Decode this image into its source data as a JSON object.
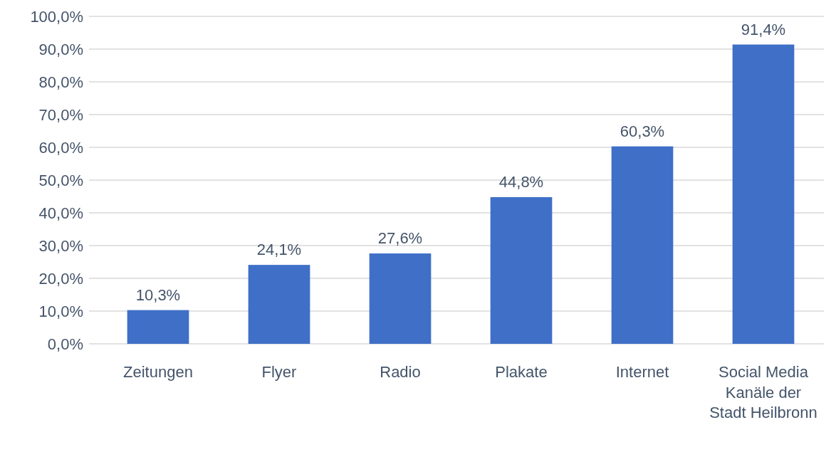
{
  "chart_data": {
    "type": "bar",
    "categories": [
      "Zeitungen",
      "Flyer",
      "Radio",
      "Plakate",
      "Internet",
      "Social Media Kanäle der Stadt Heilbronn"
    ],
    "values": [
      10.3,
      24.1,
      27.6,
      44.8,
      60.3,
      91.4
    ],
    "value_labels": [
      "10,3%",
      "24,1%",
      "27,6%",
      "44,8%",
      "60,3%",
      "91,4%"
    ],
    "color": "#3f6fc7",
    "ylim": [
      0,
      100
    ],
    "yticks": [
      {
        "value": 0,
        "label": "0,0%"
      },
      {
        "value": 10,
        "label": "10,0%"
      },
      {
        "value": 20,
        "label": "20,0%"
      },
      {
        "value": 30,
        "label": "30,0%"
      },
      {
        "value": 40,
        "label": "40,0%"
      },
      {
        "value": 50,
        "label": "50,0%"
      },
      {
        "value": 60,
        "label": "60,0%"
      },
      {
        "value": 70,
        "label": "70,0%"
      },
      {
        "value": 80,
        "label": "80,0%"
      },
      {
        "value": 90,
        "label": "90,0%"
      },
      {
        "value": 100,
        "label": "100,0%"
      }
    ],
    "grid": "y"
  }
}
